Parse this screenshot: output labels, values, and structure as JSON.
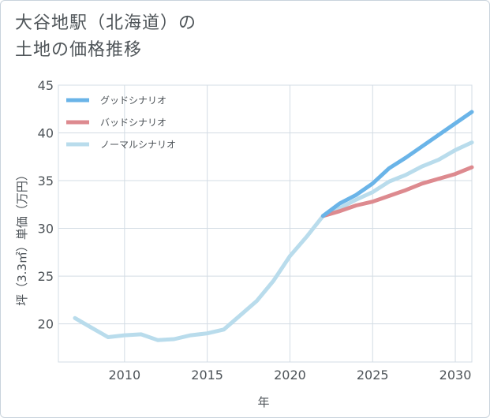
{
  "chart_data": {
    "type": "line",
    "title": "大谷地駅（北海道）の\n土地の価格推移",
    "xlabel": "年",
    "ylabel": "坪（3.3㎡）単価（万円）",
    "xlim": [
      2006,
      2031
    ],
    "ylim": [
      16,
      45
    ],
    "xticks": [
      2010,
      2015,
      2020,
      2025,
      2030
    ],
    "yticks": [
      20,
      25,
      30,
      35,
      40,
      45
    ],
    "grid": true,
    "legend_position": "top-left",
    "series": [
      {
        "name": "グッドシナリオ",
        "color": "#6ab4e8",
        "x": [
          2022,
          2023,
          2024,
          2025,
          2026,
          2027,
          2028,
          2029,
          2030,
          2031
        ],
        "y": [
          31.3,
          32.6,
          33.5,
          34.7,
          36.3,
          37.4,
          38.6,
          39.8,
          41.0,
          42.2
        ]
      },
      {
        "name": "バッドシナリオ",
        "color": "#dd8a8f",
        "x": [
          2022,
          2023,
          2024,
          2025,
          2026,
          2027,
          2028,
          2029,
          2030,
          2031
        ],
        "y": [
          31.3,
          31.8,
          32.4,
          32.8,
          33.4,
          34.0,
          34.7,
          35.2,
          35.7,
          36.4
        ]
      },
      {
        "name": "ノーマルシナリオ",
        "color": "#b9dcec",
        "x": [
          2007,
          2008,
          2009,
          2010,
          2011,
          2012,
          2013,
          2014,
          2015,
          2016,
          2017,
          2018,
          2019,
          2020,
          2021,
          2022,
          2023,
          2024,
          2025,
          2026,
          2027,
          2028,
          2029,
          2030,
          2031
        ],
        "y": [
          20.6,
          19.6,
          18.6,
          18.8,
          18.9,
          18.3,
          18.4,
          18.8,
          19.0,
          19.4,
          20.9,
          22.4,
          24.5,
          27.1,
          29.1,
          31.3,
          32.1,
          33.0,
          33.8,
          34.9,
          35.6,
          36.5,
          37.2,
          38.2,
          39.0
        ]
      }
    ]
  }
}
